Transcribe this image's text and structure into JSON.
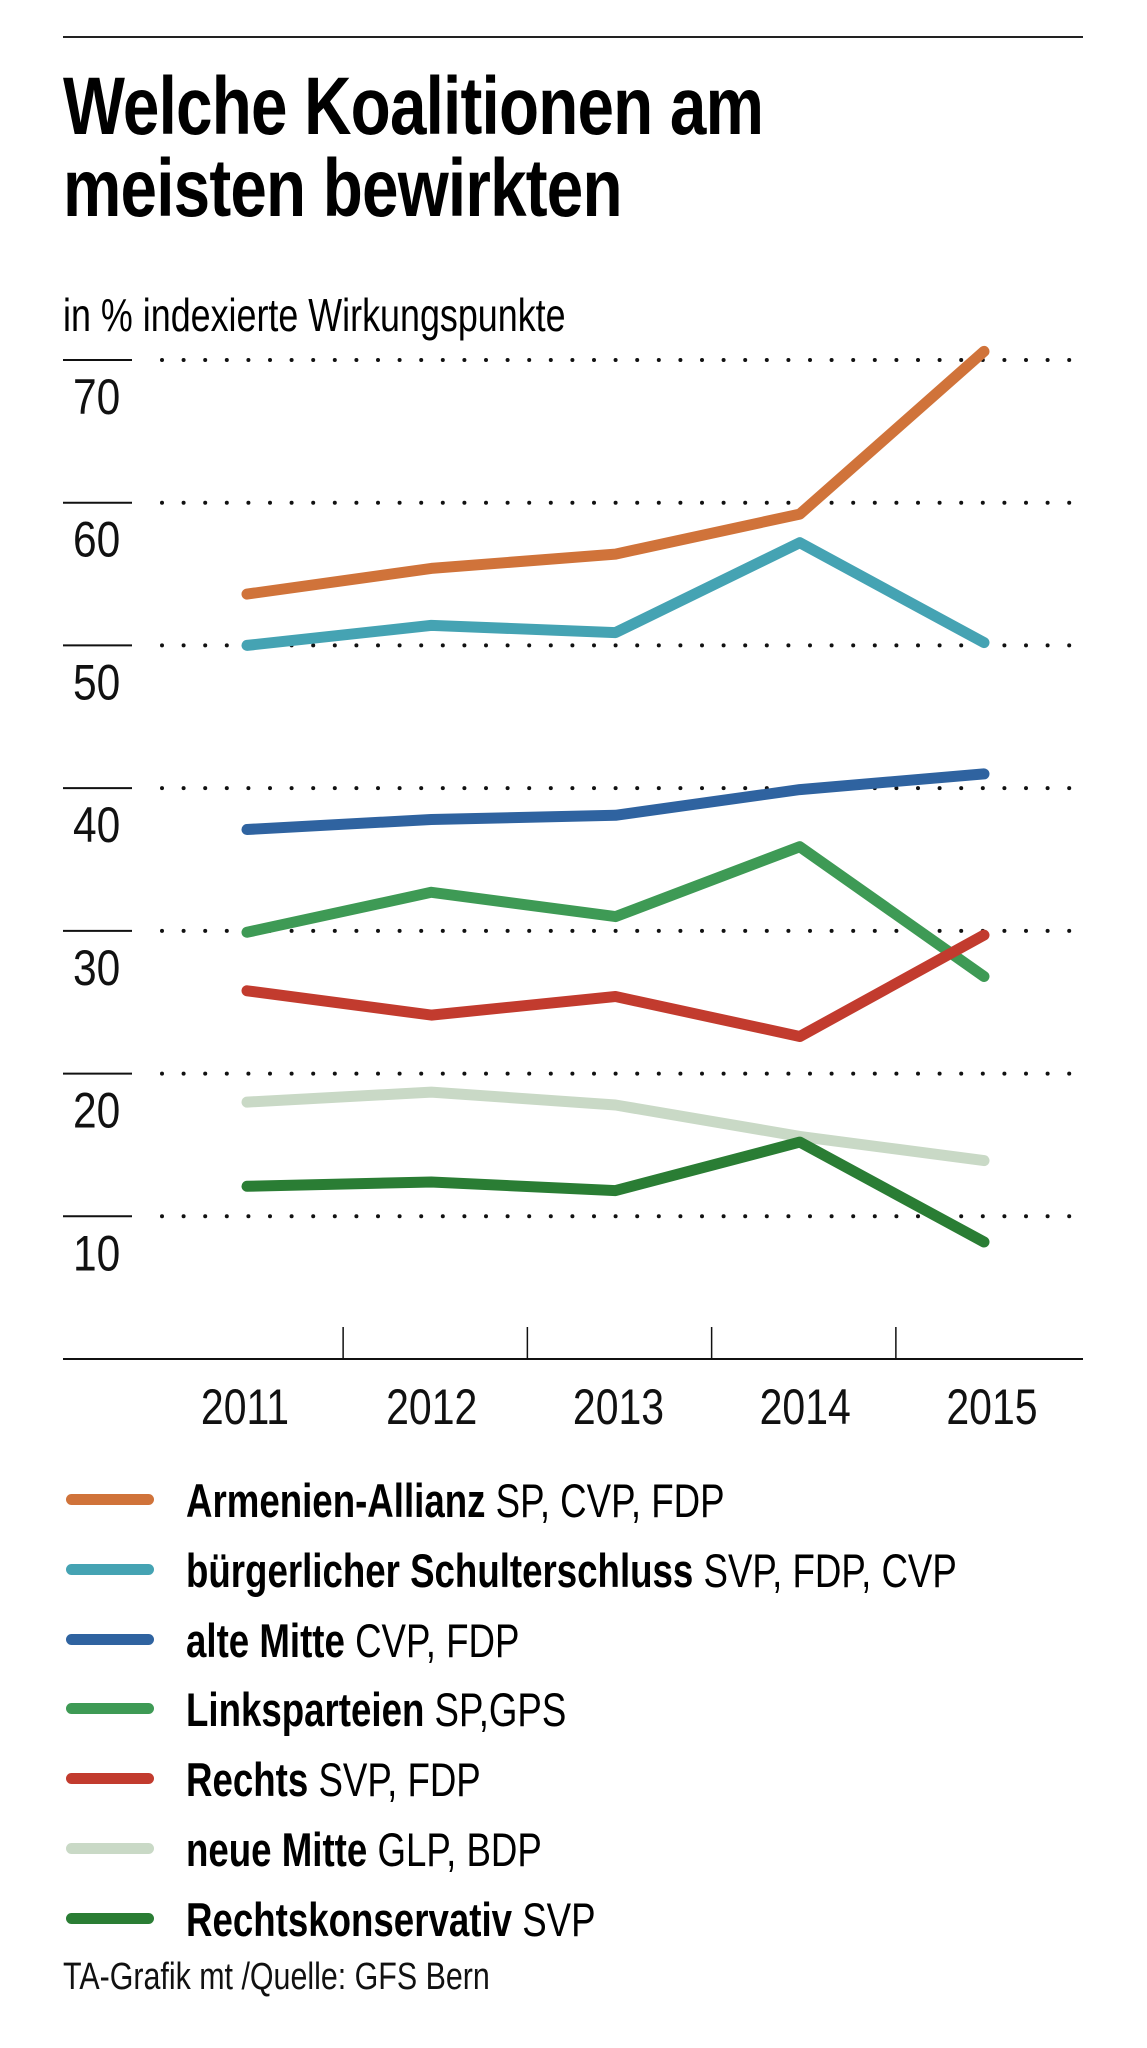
{
  "header": {
    "title_lines": [
      "Welche Koalitionen am",
      "meisten bewirkten"
    ],
    "subtitle": "in % indexierte Wirkungspunkte"
  },
  "chart_data": {
    "type": "line",
    "title": "Welche Koalitionen am meisten bewirkten",
    "subtitle": "in % indexierte Wirkungspunkte",
    "xlabel": "",
    "ylabel": "in % indexierte Wirkungspunkte",
    "x": [
      "2011",
      "2012",
      "2013",
      "2014",
      "2015"
    ],
    "ylim": [
      0,
      70
    ],
    "yticks": [
      10,
      20,
      30,
      40,
      50,
      60,
      70
    ],
    "ytick_labels": [
      "10",
      "20",
      "30",
      "40",
      "50",
      "60",
      "70"
    ],
    "grid": "dotted horizontal",
    "legend_position": "bottom",
    "series": [
      {
        "name": "Armenien-Allianz",
        "parties": "SP, CVP, FDP",
        "color": "#D0733A",
        "values": [
          53.6,
          55.4,
          56.4,
          59.2,
          70.6
        ]
      },
      {
        "name": "bürgerlicher Schulterschluss",
        "parties": "SVP, FDP, CVP",
        "color": "#45A3B3",
        "values": [
          50.0,
          51.4,
          50.9,
          57.2,
          50.2
        ]
      },
      {
        "name": "alte Mitte",
        "parties": "CVP, FDP",
        "color": "#2F63A0",
        "values": [
          37.1,
          37.8,
          38.1,
          39.9,
          41.0
        ]
      },
      {
        "name": "Linksparteien",
        "parties": "SP,GPS",
        "color": "#3E9A55",
        "values": [
          29.9,
          32.7,
          31.0,
          35.9,
          26.8
        ]
      },
      {
        "name": "Rechts",
        "parties": "SVP, FDP",
        "color": "#C23B2E",
        "values": [
          25.8,
          24.1,
          25.4,
          22.6,
          29.7
        ]
      },
      {
        "name": "neue Mitte",
        "parties": "GLP, BDP",
        "color": "#C9D9C6",
        "values": [
          18.0,
          18.7,
          17.8,
          15.6,
          13.9
        ]
      },
      {
        "name": "Rechtskonservativ",
        "parties": "SVP",
        "color": "#2A7D34",
        "values": [
          12.1,
          12.4,
          11.8,
          15.2,
          8.2
        ]
      }
    ]
  },
  "footer": {
    "source": "TA-Grafik mt /Quelle: GFS Bern"
  }
}
